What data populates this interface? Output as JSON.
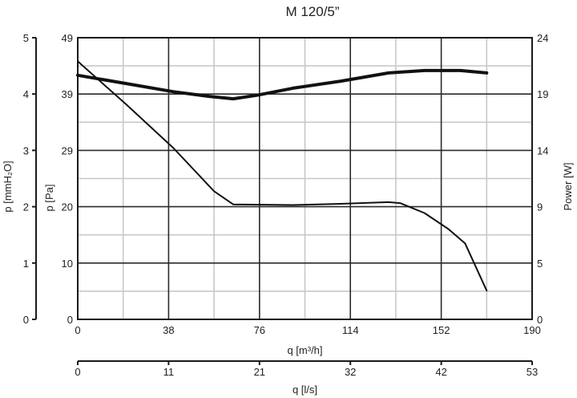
{
  "chart_data": {
    "type": "line",
    "title": "M 120/5”",
    "grid": true,
    "axes": {
      "x_primary": {
        "label": "q [m³/h]",
        "ticks": [
          "0",
          "38",
          "76",
          "114",
          "152",
          "190"
        ],
        "range": [
          0,
          190
        ]
      },
      "x_secondary": {
        "label": "q [l/s]",
        "ticks": [
          "0",
          "11",
          "21",
          "32",
          "42",
          "53"
        ]
      },
      "y_pa": {
        "label": "p [Pa]",
        "ticks": [
          "0",
          "10",
          "20",
          "29",
          "39",
          "49"
        ],
        "range": [
          0,
          49
        ]
      },
      "y_mmh2o": {
        "label": "p [mmH₂O]",
        "ticks": [
          "0",
          "1",
          "2",
          "3",
          "4",
          "5"
        ]
      },
      "y_power": {
        "label": "Power [W]",
        "ticks": [
          "0",
          "5",
          "9",
          "14",
          "19",
          "24"
        ],
        "range": [
          0,
          24
        ]
      }
    },
    "series": [
      {
        "role": "pressure",
        "axis": "y_pa",
        "x": [
          0,
          20,
          40,
          57,
          65,
          90,
          110,
          130,
          135,
          145,
          155,
          162,
          171
        ],
        "values": [
          44.9,
          37.5,
          29.8,
          22.3,
          20.0,
          19.9,
          20.1,
          20.4,
          20.2,
          18.5,
          15.7,
          13.2,
          5.0
        ]
      },
      {
        "role": "power",
        "axis": "y_power",
        "x": [
          0,
          20,
          40,
          55,
          65,
          75,
          90,
          110,
          130,
          145,
          160,
          171
        ],
        "values": [
          20.8,
          20.1,
          19.4,
          19.0,
          18.8,
          19.1,
          19.7,
          20.3,
          21.0,
          21.2,
          21.2,
          21.0
        ]
      }
    ]
  }
}
